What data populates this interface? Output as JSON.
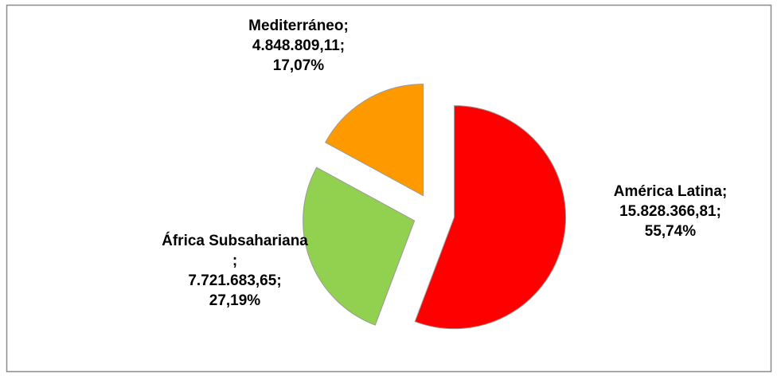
{
  "chart_data": {
    "type": "pie",
    "categories": [
      "América Latina",
      "África Subsahariana",
      "Mediterráneo"
    ],
    "values": [
      15828366.81,
      7721683.65,
      4848809.11
    ],
    "value_labels": [
      "15.828.366,81",
      "7.721.683,65",
      "4.848.809,11"
    ],
    "percent_labels": [
      "55,74%",
      "27,19%",
      "17,07%"
    ],
    "label_separator": ";",
    "colors": [
      "#ff0000",
      "#92d050",
      "#ff9900"
    ],
    "exploded": true
  }
}
